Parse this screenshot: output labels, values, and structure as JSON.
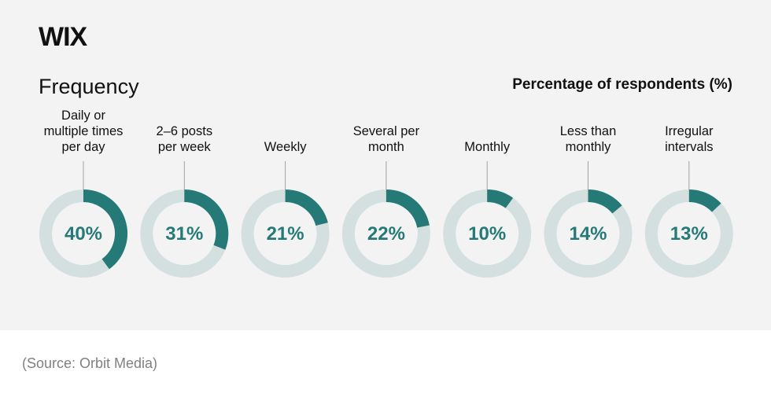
{
  "brand": {
    "logo_text": "WIX"
  },
  "source": "(Source: Orbit Media)",
  "colors": {
    "panel_bg": "#f3f3f3",
    "arc": "#257a78",
    "track": "#d4dfdf",
    "connector": "#9aa3a3"
  },
  "chart_data": {
    "type": "pie",
    "subtype": "donut-set",
    "title": "Frequency",
    "ylabel": "Percentage of respondents (%)",
    "categories": [
      "Daily or\nmultiple times\nper day",
      "2–6 posts\nper week",
      "Weekly",
      "Several per\nmonth",
      "Monthly",
      "Less than\nmonthly",
      "Irregular\nintervals"
    ],
    "values": [
      40,
      31,
      21,
      22,
      10,
      14,
      13
    ],
    "value_labels": [
      "40%",
      "31%",
      "21%",
      "22%",
      "10%",
      "14%",
      "13%"
    ]
  }
}
